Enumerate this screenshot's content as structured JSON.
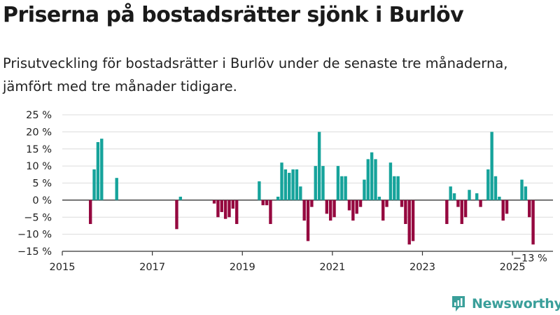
{
  "chart_data": {
    "type": "bar",
    "title": "Priserna på bostadsrätter sjönk i Burlöv",
    "subtitle": "Prisutveckling för bostadsrätter i Burlöv under de senaste tre månaderna, jämfört med tre månader tidigare.",
    "xlabel": "",
    "ylabel": "",
    "ylim": [
      -15,
      25
    ],
    "y_ticks": [
      25,
      20,
      15,
      10,
      5,
      0,
      -5,
      -10,
      -15
    ],
    "y_tick_labels": [
      "25 %",
      "20 %",
      "15 %",
      "10 %",
      "5 %",
      "0 %",
      "−5 %",
      "−10 %",
      "−15 %"
    ],
    "x_ticks": [
      2015,
      2017,
      2019,
      2021,
      2023,
      2025
    ],
    "x_tick_labels": [
      "2015",
      "2017",
      "2019",
      "2021",
      "2023",
      "2025"
    ],
    "grid": true,
    "colors": {
      "positive": "#16a39b",
      "negative": "#95083f"
    },
    "annotation": {
      "x": 2025.33,
      "value": -13,
      "text": "−13 %"
    },
    "values_by_month": [
      {
        "year": 2015,
        "values": [
          null,
          null,
          null,
          null,
          null,
          null,
          null,
          -7,
          9,
          17,
          18,
          null
        ]
      },
      {
        "year": 2016,
        "values": [
          null,
          null,
          6.5,
          null,
          null,
          null,
          null,
          null,
          null,
          null,
          null,
          null
        ]
      },
      {
        "year": 2017,
        "values": [
          null,
          null,
          null,
          null,
          null,
          null,
          -8.5,
          1,
          null,
          null,
          null,
          null
        ]
      },
      {
        "year": 2018,
        "values": [
          null,
          null,
          null,
          null,
          -1,
          -5,
          -3.5,
          -5.5,
          -5,
          -2.5,
          -7,
          null
        ]
      },
      {
        "year": 2019,
        "values": [
          null,
          null,
          null,
          null,
          5.5,
          -1.5,
          -1.5,
          -7,
          null,
          1,
          11,
          9
        ]
      },
      {
        "year": 2020,
        "values": [
          8,
          9,
          9,
          4,
          -6,
          -12,
          -2,
          10,
          20,
          10,
          -4,
          -6
        ]
      },
      {
        "year": 2021,
        "values": [
          -5,
          10,
          7,
          7,
          -3,
          -6,
          -4,
          -2,
          6,
          12,
          14,
          12
        ]
      },
      {
        "year": 2022,
        "values": [
          1,
          -6,
          -2,
          11,
          7,
          7,
          -2,
          -7,
          -13,
          -12,
          null,
          null
        ]
      },
      {
        "year": 2023,
        "values": [
          null,
          null,
          null,
          null,
          null,
          null,
          -7,
          4,
          2,
          -2,
          -7,
          -5
        ]
      },
      {
        "year": 2024,
        "values": [
          3,
          null,
          2,
          -2,
          null,
          9,
          20,
          7,
          1,
          -6,
          -4,
          null
        ]
      },
      {
        "year": 2025,
        "values": [
          null,
          null,
          6,
          4,
          -5,
          -13,
          null,
          null,
          null,
          null,
          null,
          null
        ]
      }
    ]
  },
  "footer": {
    "logo_text": "Newsworthy"
  }
}
